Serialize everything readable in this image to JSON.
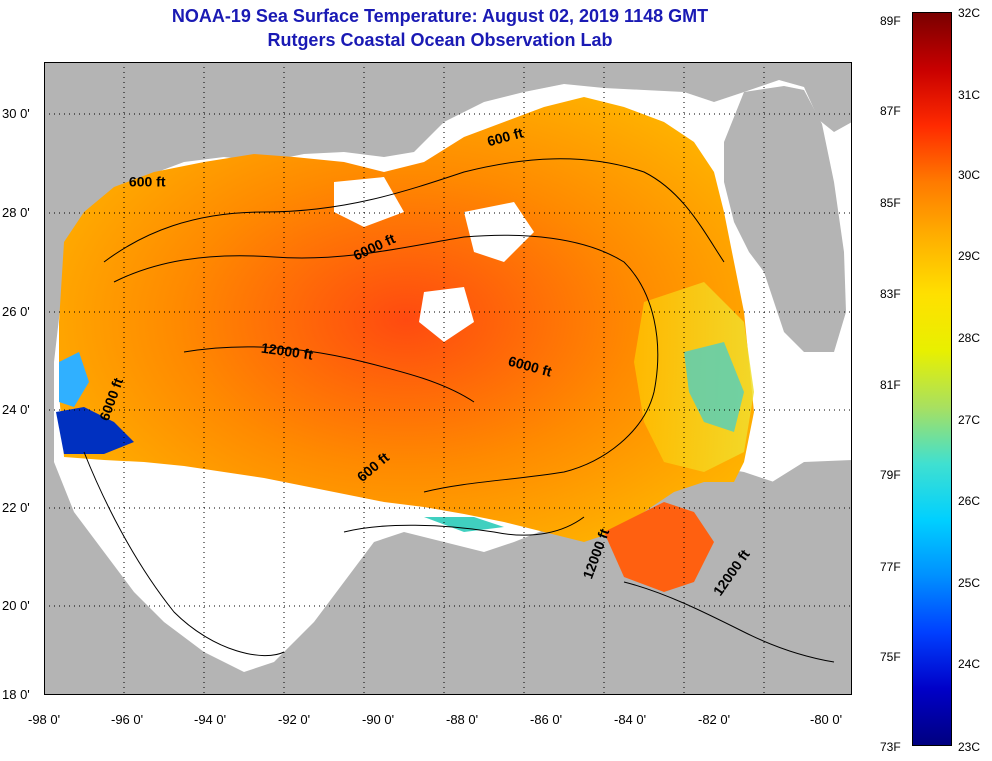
{
  "title": {
    "line1": "NOAA-19 Sea Surface Temperature:  August 02, 2019 1148 GMT",
    "line2": "Rutgers Coastal Ocean Observation Lab"
  },
  "axes": {
    "lon_ticks": [
      "-98 0'",
      "-96 0'",
      "-94 0'",
      "-92 0'",
      "-90 0'",
      "-88 0'",
      "-86 0'",
      "-84 0'",
      "-82 0'",
      "-80 0'"
    ],
    "lat_ticks": [
      "30 0'",
      "28 0'",
      "26 0'",
      "24 0'",
      "22 0'",
      "20 0'",
      "18 0'"
    ]
  },
  "contour_labels": [
    {
      "text": "600 ft",
      "lon": -95.7,
      "lat": 28.2,
      "angle": 0
    },
    {
      "text": "600 ft",
      "lon": -87.7,
      "lat": 29.1,
      "angle": -15
    },
    {
      "text": "6000 ft",
      "lon": -90.6,
      "lat": 26.9,
      "angle": -25
    },
    {
      "text": "12000 ft",
      "lon": -92.6,
      "lat": 24.8,
      "angle": 8
    },
    {
      "text": "6000 ft",
      "lon": -87.2,
      "lat": 24.5,
      "angle": 15
    },
    {
      "text": "6000 ft",
      "lon": -96.4,
      "lat": 23.9,
      "angle": -70
    },
    {
      "text": "600 ft",
      "lon": -90.6,
      "lat": 22.5,
      "angle": -40
    },
    {
      "text": "12000 ft",
      "lon": -85.6,
      "lat": 20.8,
      "angle": -70
    },
    {
      "text": "12000 ft",
      "lon": -82.6,
      "lat": 20.4,
      "angle": -55
    }
  ],
  "colorbar": {
    "fahrenheit": [
      "89F",
      "87F",
      "85F",
      "83F",
      "81F",
      "79F",
      "77F",
      "75F",
      "73F"
    ],
    "celsius": [
      "32C",
      "31C",
      "30C",
      "29C",
      "28C",
      "27C",
      "26C",
      "25C",
      "24C",
      "23C"
    ],
    "colors": [
      "#7a0000",
      "#c80000",
      "#ff2a00",
      "#ff7a00",
      "#ffb000",
      "#ffe000",
      "#e8f000",
      "#a8e060",
      "#40e0d0",
      "#00d0ff",
      "#0090ff",
      "#0040ff",
      "#0000c8",
      "#000080"
    ]
  },
  "land_color": "#b4b4b4",
  "no_data_color": "#ffffff"
}
